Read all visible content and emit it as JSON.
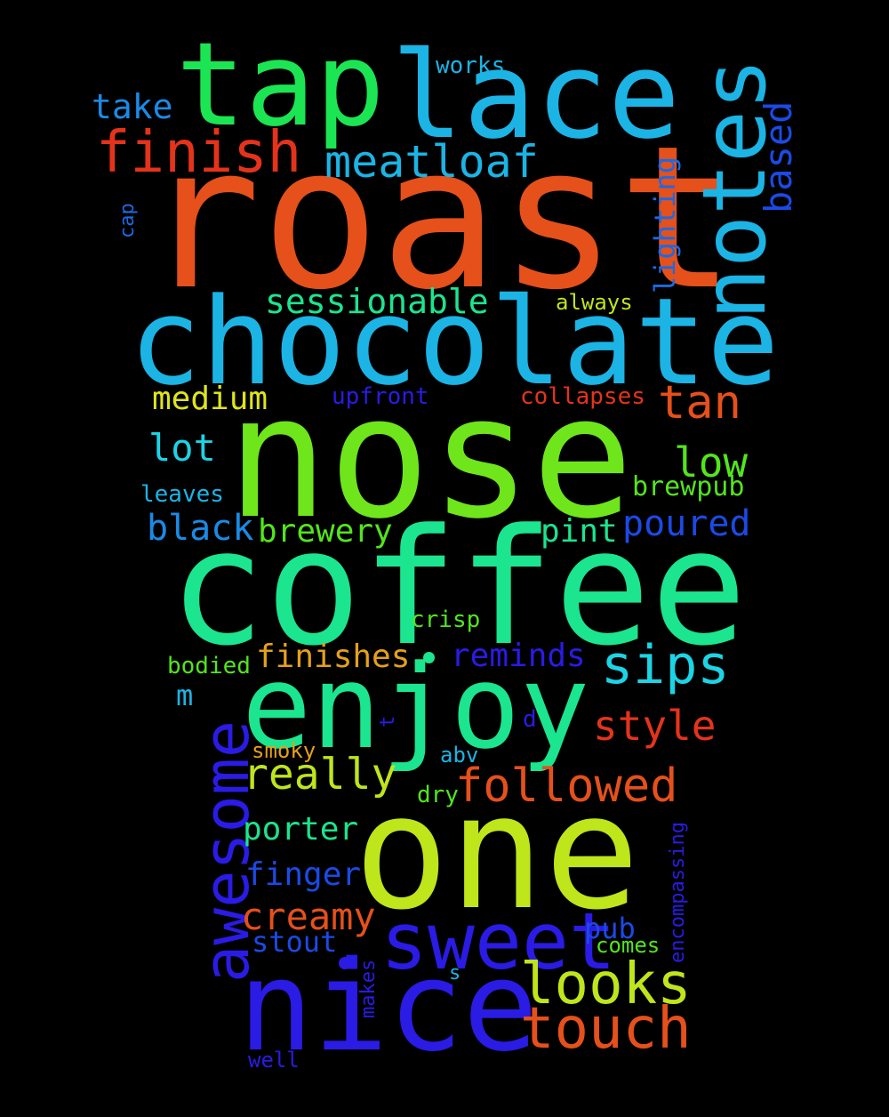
{
  "colors": {
    "background": "#000000"
  },
  "words": [
    {
      "id": "roast",
      "text": "roast",
      "color": "#e5501b",
      "vertical": false
    },
    {
      "id": "nose",
      "text": "nose",
      "color": "#6fe51b",
      "vertical": false
    },
    {
      "id": "coffee",
      "text": "coffee",
      "color": "#1be58e",
      "vertical": false
    },
    {
      "id": "one",
      "text": "one",
      "color": "#bfe51b",
      "vertical": false
    },
    {
      "id": "chocolate",
      "text": "chocolate",
      "color": "#1bb4e5",
      "vertical": false
    },
    {
      "id": "lace",
      "text": "lace",
      "color": "#1bb4e5",
      "vertical": false
    },
    {
      "id": "tap",
      "text": "tap",
      "color": "#1be553",
      "vertical": false
    },
    {
      "id": "enjoy",
      "text": "enjoy",
      "color": "#1be58e",
      "vertical": false
    },
    {
      "id": "nice",
      "text": "nice",
      "color": "#2a1be5",
      "vertical": false
    },
    {
      "id": "notes",
      "text": "notes",
      "color": "#1bb4e5",
      "vertical": true
    },
    {
      "id": "sweet",
      "text": "sweet",
      "color": "#2a1be5",
      "vertical": false
    },
    {
      "id": "awesome",
      "text": "awesome",
      "color": "#2a1be5",
      "vertical": true
    },
    {
      "id": "finish",
      "text": "finish",
      "color": "#e5331b",
      "vertical": false
    },
    {
      "id": "meatloaf",
      "text": "meatloaf",
      "color": "#1bb4e5",
      "vertical": false
    },
    {
      "id": "sips",
      "text": "sips",
      "color": "#1bd4e5",
      "vertical": false
    },
    {
      "id": "looks",
      "text": "looks",
      "color": "#bfe51b",
      "vertical": false
    },
    {
      "id": "touch",
      "text": "touch",
      "color": "#e5501b",
      "vertical": false
    },
    {
      "id": "followed",
      "text": "followed",
      "color": "#e5501b",
      "vertical": false
    },
    {
      "id": "tan",
      "text": "tan",
      "color": "#e5501b",
      "vertical": false
    },
    {
      "id": "really",
      "text": "really",
      "color": "#bfe51b",
      "vertical": false
    },
    {
      "id": "style",
      "text": "style",
      "color": "#e5331b",
      "vertical": false
    },
    {
      "id": "low",
      "text": "low",
      "color": "#53e51b",
      "vertical": false
    },
    {
      "id": "creamy",
      "text": "creamy",
      "color": "#e5501b",
      "vertical": false
    },
    {
      "id": "based",
      "text": "based",
      "color": "#1b4ae5",
      "vertical": true
    },
    {
      "id": "sessionable",
      "text": "sessionable",
      "color": "#1be58e",
      "vertical": false
    },
    {
      "id": "lot",
      "text": "lot",
      "color": "#1bd4e5",
      "vertical": false
    },
    {
      "id": "black",
      "text": "black",
      "color": "#1b8ae5",
      "vertical": false
    },
    {
      "id": "poured",
      "text": "poured",
      "color": "#1b4ae5",
      "vertical": false
    },
    {
      "id": "medium",
      "text": "medium",
      "color": "#dfe51b",
      "vertical": false
    },
    {
      "id": "take",
      "text": "take",
      "color": "#1b8ae5",
      "vertical": false
    },
    {
      "id": "finishes",
      "text": "finishes",
      "color": "#e5a01b",
      "vertical": false
    },
    {
      "id": "reminds",
      "text": "reminds",
      "color": "#2a1be5",
      "vertical": false
    },
    {
      "id": "brewery",
      "text": "brewery",
      "color": "#53e51b",
      "vertical": false
    },
    {
      "id": "pint",
      "text": "pint",
      "color": "#1be58e",
      "vertical": false
    },
    {
      "id": "porter",
      "text": "porter",
      "color": "#1be58e",
      "vertical": false
    },
    {
      "id": "finger",
      "text": "finger",
      "color": "#1b4ae5",
      "vertical": false
    },
    {
      "id": "lighting",
      "text": "lighting",
      "color": "#1b6ae5",
      "vertical": true
    },
    {
      "id": "brewpub",
      "text": "brewpub",
      "color": "#53e51b",
      "vertical": false
    },
    {
      "id": "stout",
      "text": "stout",
      "color": "#1b4ae5",
      "vertical": false
    },
    {
      "id": "pub",
      "text": "pub",
      "color": "#1b4ae5",
      "vertical": false
    },
    {
      "id": "works",
      "text": "works",
      "color": "#1bb4e5",
      "vertical": false
    },
    {
      "id": "upfront",
      "text": "upfront",
      "color": "#2a1be5",
      "vertical": false
    },
    {
      "id": "collapses",
      "text": "collapses",
      "color": "#e5331b",
      "vertical": false
    },
    {
      "id": "leaves",
      "text": "leaves",
      "color": "#1bb4e5",
      "vertical": false
    },
    {
      "id": "crisp",
      "text": "crisp",
      "color": "#53e51b",
      "vertical": false
    },
    {
      "id": "bodied",
      "text": "bodied",
      "color": "#53e51b",
      "vertical": false
    },
    {
      "id": "m",
      "text": "m",
      "color": "#1bb4e5",
      "vertical": false
    },
    {
      "id": "always",
      "text": "always",
      "color": "#bfe51b",
      "vertical": false
    },
    {
      "id": "smoky",
      "text": "smoky",
      "color": "#e5a01b",
      "vertical": false
    },
    {
      "id": "abv",
      "text": "abv",
      "color": "#1bb4e5",
      "vertical": false
    },
    {
      "id": "dry",
      "text": "dry",
      "color": "#53e51b",
      "vertical": false
    },
    {
      "id": "comes",
      "text": "comes",
      "color": "#53e51b",
      "vertical": false
    },
    {
      "id": "cap",
      "text": "cap",
      "color": "#1b6ae5",
      "vertical": true
    },
    {
      "id": "encompassing",
      "text": "encompassing",
      "color": "#2a1be5",
      "vertical": true
    },
    {
      "id": "makes",
      "text": "makes",
      "color": "#2a1be5",
      "vertical": true
    },
    {
      "id": "well",
      "text": "well",
      "color": "#2a1be5",
      "vertical": false
    },
    {
      "id": "d",
      "text": "d",
      "color": "#2a1be5",
      "vertical": false
    },
    {
      "id": "t",
      "text": "t",
      "color": "#2a1be5",
      "vertical": true
    },
    {
      "id": "s",
      "text": "s",
      "color": "#1bb4e5",
      "vertical": false
    }
  ]
}
